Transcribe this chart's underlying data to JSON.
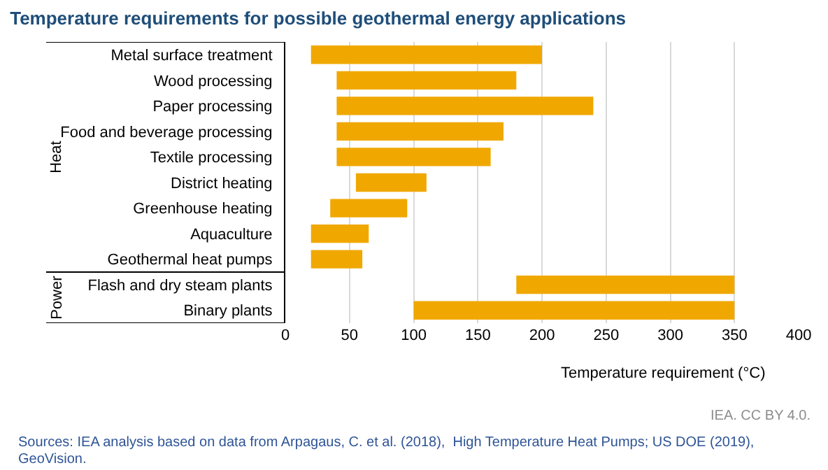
{
  "chart_data": {
    "type": "bar",
    "orientation": "horizontal",
    "title": "Temperature requirements for possible geothermal energy applications",
    "xlabel": "Temperature requirement (°C)",
    "categories": [
      "Metal surface treatment",
      "Wood processing",
      "Paper processing",
      "Food and beverage processing",
      "Textile processing",
      "District heating",
      "Greenhouse heating",
      "Aquaculture",
      "Geothermal heat pumps",
      "Flash and dry steam plants",
      "Binary plants"
    ],
    "base": [
      20,
      40,
      40,
      40,
      40,
      55,
      35,
      20,
      20,
      180,
      100
    ],
    "values": [
      180,
      140,
      200,
      130,
      120,
      55,
      60,
      45,
      40,
      170,
      250
    ],
    "color": "#f0a800",
    "xlim": [
      0,
      400
    ],
    "xticks": [
      0,
      50,
      100,
      150,
      200,
      250,
      300,
      350,
      400
    ],
    "grid": "x",
    "annotations": [
      "Heat",
      "Power",
      "IEA. CC BY 4.0.",
      "Sources: IEA analysis based on data from Arpagaus, C. et al. (2018),  High Temperature Heat Pumps; US DOE (2019),",
      "GeoVision."
    ]
  }
}
